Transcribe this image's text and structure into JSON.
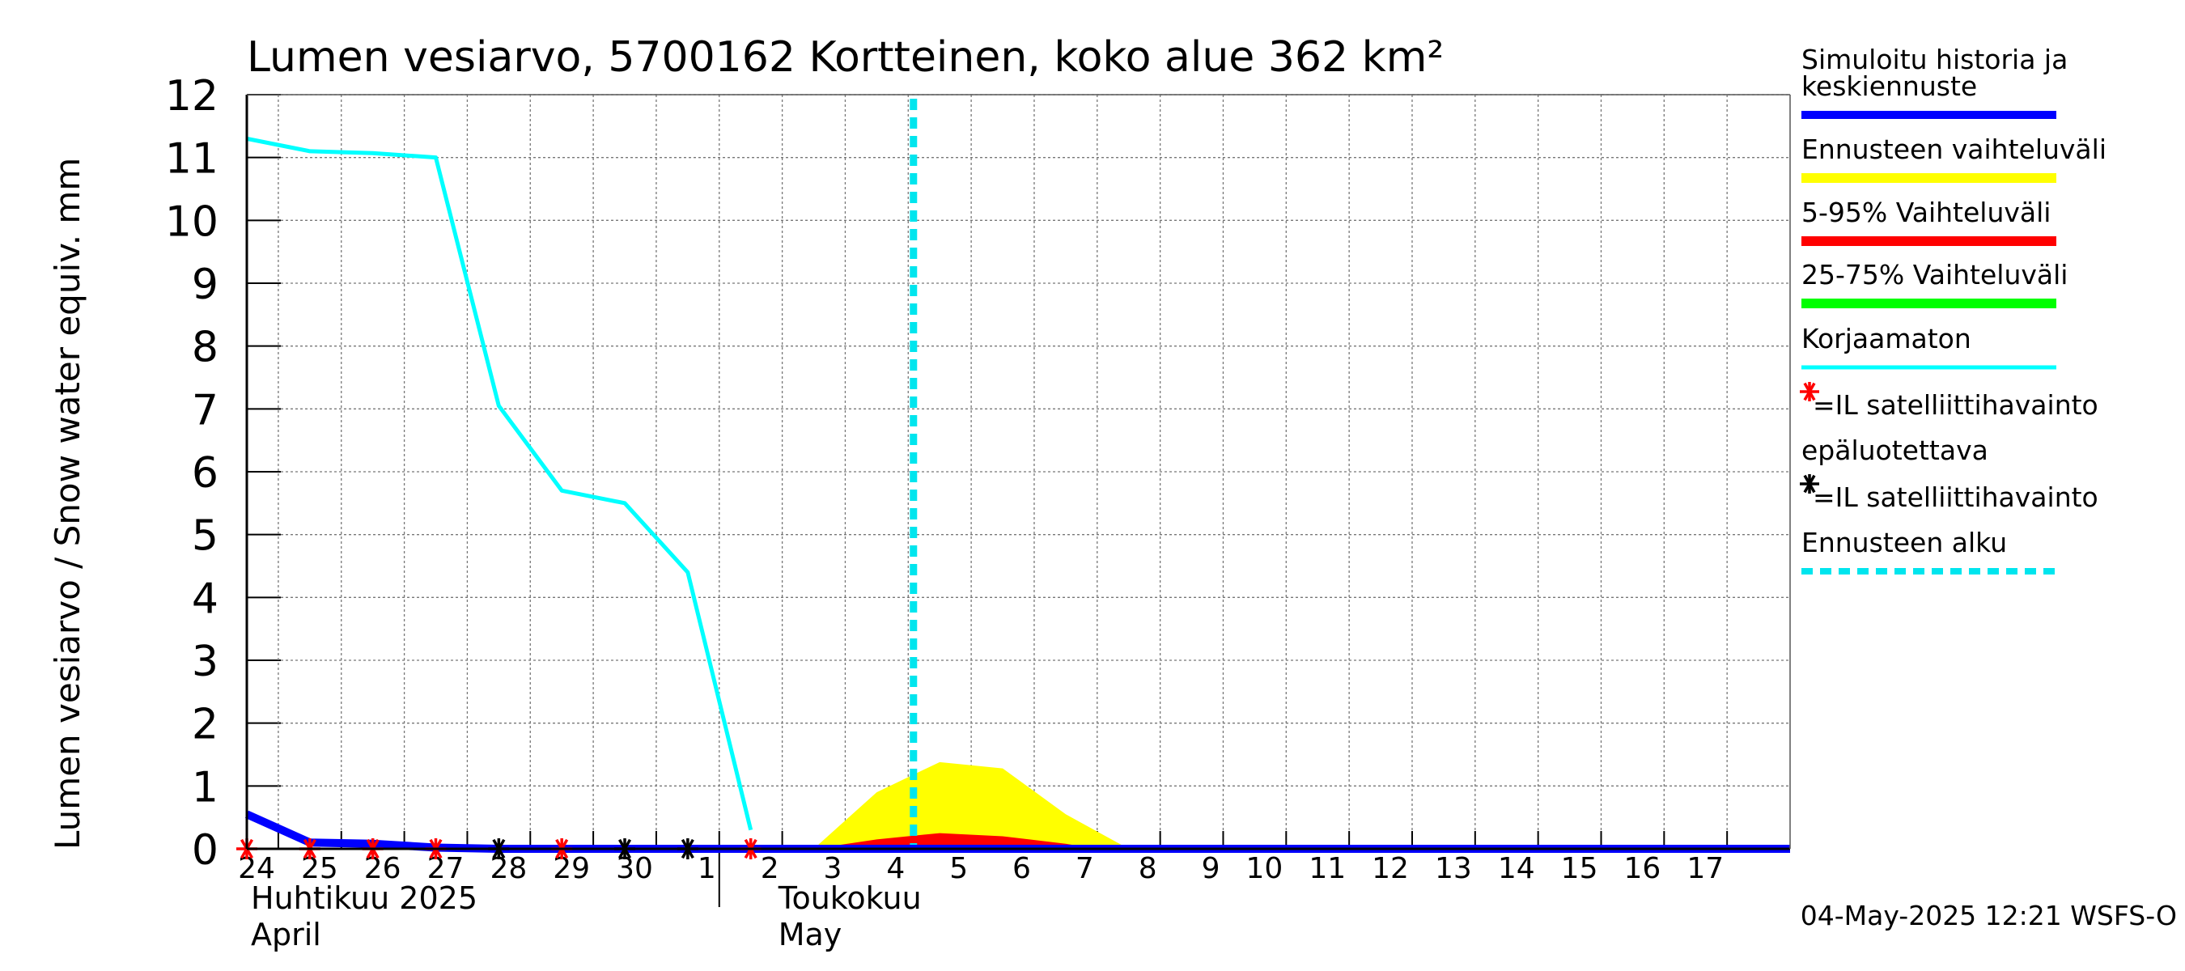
{
  "chart_data": {
    "type": "line",
    "title": "Lumen vesiarvo, 5700162 Kortteinen, koko alue 362 km²",
    "ylabel": "Lumen vesiarvo / Snow water equiv.    mm",
    "ylim": [
      0,
      12
    ],
    "yticks": [
      0,
      1,
      2,
      3,
      4,
      5,
      6,
      7,
      8,
      9,
      10,
      11,
      12
    ],
    "xlim": [
      "2025-04-23T12:00",
      "2025-05-18T00:00"
    ],
    "x_day_labels": [
      "24",
      "25",
      "26",
      "27",
      "28",
      "29",
      "30",
      "1",
      "2",
      "3",
      "4",
      "5",
      "6",
      "7",
      "8",
      "9",
      "10",
      "11",
      "12",
      "13",
      "14",
      "15",
      "16",
      "17"
    ],
    "month_labels": [
      {
        "fi": "Huhtikuu  2025",
        "en": "April"
      },
      {
        "fi": "Toukokuu",
        "en": "May"
      }
    ],
    "timestamp": "04-May-2025 12:21 WSFS-O",
    "legend": [
      {
        "label": "Simuloitu historia ja keskiennuste",
        "color": "#0000ff"
      },
      {
        "label": "Ennusteen vaihteluväli",
        "color": "#ffff00"
      },
      {
        "label": "5-95% Vaihteluväli",
        "color": "#ff0000"
      },
      {
        "label": "25-75% Vaihteluväli",
        "color": "#00ff00"
      },
      {
        "label": "Korjaamaton",
        "color": "#00ffff"
      },
      {
        "label": "=IL satelliittihavainto epäluotettava",
        "color": "#ff0000",
        "marker": "asterisk"
      },
      {
        "label": "=IL satelliittihavainto",
        "color": "#000000",
        "marker": "asterisk"
      },
      {
        "label": "Ennusteen alku",
        "color": "#00e5ee",
        "dashed": true
      }
    ],
    "series": [
      {
        "name": "Simuloitu historia ja keskiennuste",
        "color": "#0000ff",
        "points": [
          [
            "2025-04-23T12:00",
            0.55
          ],
          [
            "2025-04-24T12:00",
            0.1
          ],
          [
            "2025-04-25T12:00",
            0.08
          ],
          [
            "2025-04-26T12:00",
            0.02
          ],
          [
            "2025-04-27T12:00",
            0.0
          ],
          [
            "2025-05-18T00:00",
            0.0
          ]
        ]
      },
      {
        "name": "Korjaamaton",
        "color": "#00ffff",
        "points": [
          [
            "2025-04-23T12:00",
            11.3
          ],
          [
            "2025-04-24T12:00",
            11.1
          ],
          [
            "2025-04-25T12:00",
            11.07
          ],
          [
            "2025-04-26T12:00",
            11.0
          ],
          [
            "2025-04-27T12:00",
            7.05
          ],
          [
            "2025-04-28T12:00",
            5.7
          ],
          [
            "2025-04-29T12:00",
            5.5
          ],
          [
            "2025-04-30T12:00",
            4.4
          ],
          [
            "2025-05-01T12:00",
            0.3
          ]
        ]
      }
    ],
    "bands": [
      {
        "name": "Ennusteen vaihteluväli",
        "color": "#ffff00",
        "points": [
          [
            "2025-05-02T12:00",
            0.0
          ],
          [
            "2025-05-03T12:00",
            0.9
          ],
          [
            "2025-05-04T12:00",
            1.38
          ],
          [
            "2025-05-05T12:00",
            1.28
          ],
          [
            "2025-05-06T12:00",
            0.55
          ],
          [
            "2025-05-07T12:00",
            0.0
          ]
        ]
      },
      {
        "name": "5-95% Vaihteluväli",
        "color": "#ff0000",
        "points": [
          [
            "2025-05-02T12:00",
            0.0
          ],
          [
            "2025-05-03T12:00",
            0.15
          ],
          [
            "2025-05-04T12:00",
            0.25
          ],
          [
            "2025-05-05T12:00",
            0.2
          ],
          [
            "2025-05-06T12:00",
            0.08
          ],
          [
            "2025-05-07T00:00",
            0.0
          ]
        ]
      }
    ],
    "forecast_start": "2025-05-04T02:00",
    "observations": [
      {
        "date": "2025-04-23T12:00",
        "value": 0,
        "type": "unreliable"
      },
      {
        "date": "2025-04-24T12:00",
        "value": 0,
        "type": "unreliable"
      },
      {
        "date": "2025-04-25T12:00",
        "value": 0,
        "type": "unreliable"
      },
      {
        "date": "2025-04-26T12:00",
        "value": 0,
        "type": "unreliable"
      },
      {
        "date": "2025-04-27T12:00",
        "value": 0,
        "type": "reliable"
      },
      {
        "date": "2025-04-28T12:00",
        "value": 0,
        "type": "unreliable"
      },
      {
        "date": "2025-04-29T12:00",
        "value": 0,
        "type": "reliable"
      },
      {
        "date": "2025-04-30T12:00",
        "value": 0,
        "type": "reliable"
      },
      {
        "date": "2025-05-01T12:00",
        "value": 0,
        "type": "unreliable"
      }
    ]
  }
}
